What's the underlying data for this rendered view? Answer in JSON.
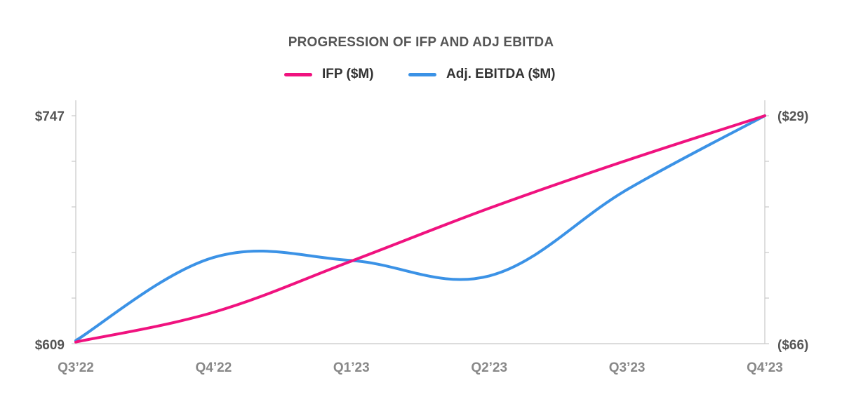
{
  "chart_data": {
    "type": "line",
    "title": "PROGRESSION OF IFP AND ADJ EBITDA",
    "categories": [
      "Q3’22",
      "Q4’22",
      "Q1’23",
      "Q2’23",
      "Q3’23",
      "Q4’23"
    ],
    "y_left": {
      "min_label": "$609",
      "max_label": "$747",
      "range": [
        609,
        747
      ]
    },
    "y_right": {
      "min_label": "($66)",
      "max_label": "($29)",
      "range": [
        -66,
        -29
      ]
    },
    "series": [
      {
        "name": "IFP ($M)",
        "axis": "left",
        "color": "#f0127f",
        "values": [
          610,
          628,
          659,
          691,
          720,
          747
        ]
      },
      {
        "name": "Adj. EBITDA ($M)",
        "axis": "right",
        "color": "#3b92e6",
        "values": [
          -65.5,
          -52,
          -52.5,
          -55,
          -41,
          -29
        ]
      }
    ],
    "grid": false,
    "legend_position": "top-center"
  }
}
